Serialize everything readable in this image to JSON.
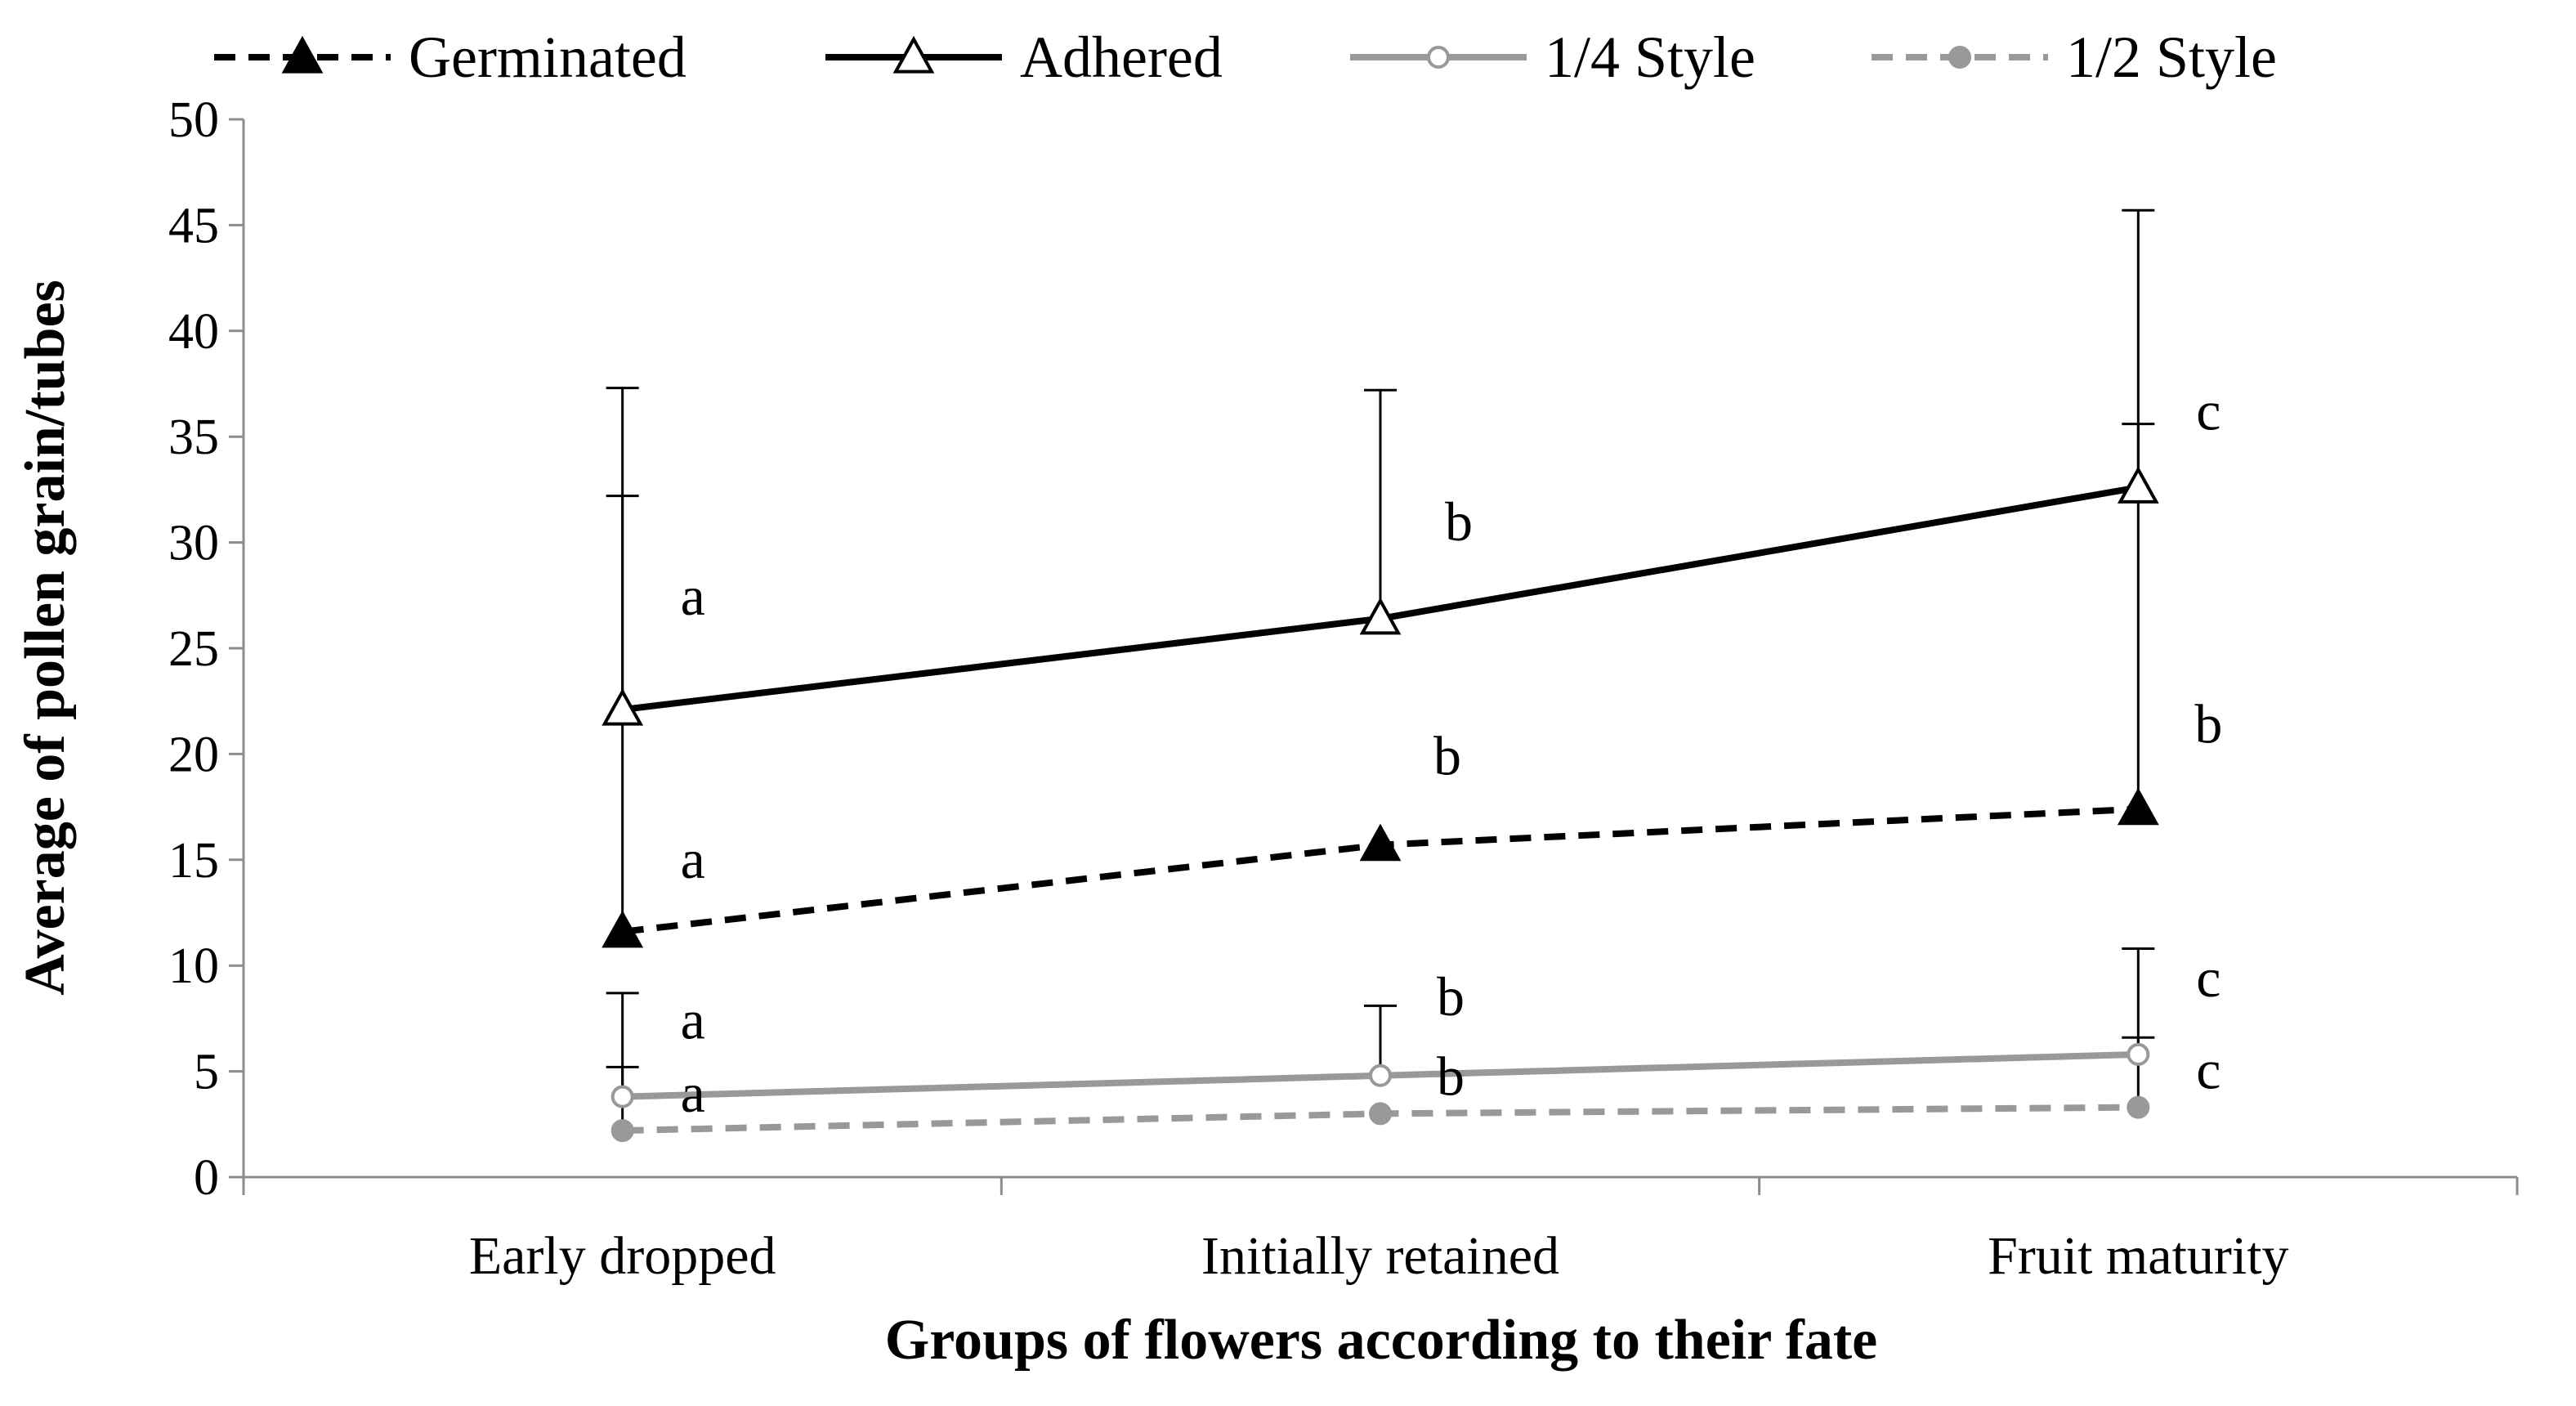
{
  "chart_data": {
    "type": "line",
    "title": "",
    "xlabel": "Groups of flowers according to their fate",
    "ylabel": "Average of pollen grain/tubes",
    "categories": [
      "Early dropped",
      "Initially retained",
      "Fruit maturity"
    ],
    "ylim": [
      0,
      50
    ],
    "yticks": [
      0,
      5,
      10,
      15,
      20,
      25,
      30,
      35,
      40,
      45,
      50
    ],
    "grid": false,
    "legend_position": "top",
    "series": [
      {
        "name": "Germinated",
        "values": [
          11.6,
          15.7,
          17.4
        ],
        "error_upper": [
          32.2,
          null,
          35.6
        ],
        "color": "#000000",
        "line_style": "dashed",
        "marker": "filled-triangle",
        "significance": [
          "a",
          "b",
          "b"
        ]
      },
      {
        "name": "Adhered",
        "values": [
          22.1,
          26.4,
          32.6
        ],
        "error_upper": [
          37.3,
          37.2,
          45.7
        ],
        "color": "#000000",
        "line_style": "solid",
        "marker": "open-triangle",
        "significance": [
          "a",
          "b",
          "c"
        ]
      },
      {
        "name": "1/4 Style",
        "values": [
          3.8,
          4.8,
          5.8
        ],
        "error_upper": [
          8.7,
          8.1,
          10.8
        ],
        "color": "#999999",
        "line_style": "solid",
        "marker": "open-circle",
        "significance": [
          "a",
          "b",
          "c"
        ]
      },
      {
        "name": "1/2 Style",
        "values": [
          2.2,
          3.0,
          3.3
        ],
        "error_upper": [
          5.2,
          null,
          6.6
        ],
        "color": "#999999",
        "line_style": "dashed",
        "marker": "filled-circle",
        "significance": [
          "a",
          "b",
          "c"
        ]
      }
    ]
  }
}
